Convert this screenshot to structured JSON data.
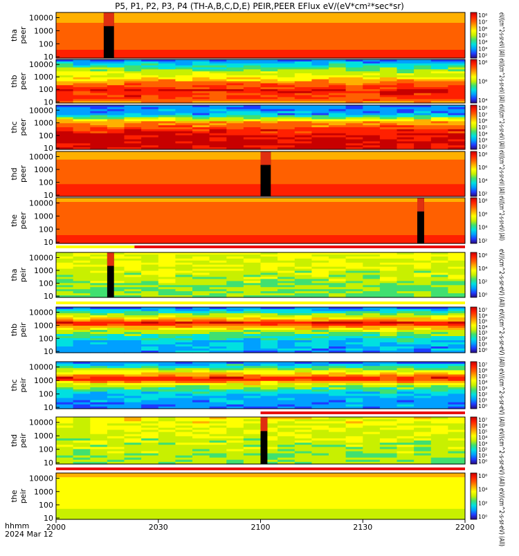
{
  "title": "P5, P1, P2, P3, P4 (TH-A,B,C,D,E) PEIR,PEER EFlux eV/(eV*cm²*sec*sr)",
  "colorbar_label_top": "eV/(cm^2-s-sr-eV) (All) eV/(cm^2-s-sr-eV) (All) eV/(cm^2-s-sr-eV) (All) eV/(cm^2-s-sr-eV) (All) eV/(cm^2-s-sr-eV) (All)",
  "colorbar_label_bottom": "eV/(cm^2-s-sr-eV) (All) eV/(cm^2-s-sr-eV) (All) eV/(cm^2-s-sr-eV) (All) eV/(cm^2-s-sr-eV) (All) eV/(cm^2-s-sr-eV) (All)",
  "x_axis": {
    "label_line1": "hhmm",
    "label_line2": "2024 Mar 12",
    "ticks": [
      "2000",
      "2030",
      "2100",
      "2130",
      "2200"
    ],
    "range": [
      "20:00",
      "22:00"
    ]
  },
  "colors": {
    "spectrogram_palette": [
      "#2a0a7a",
      "#1e3cff",
      "#00a0ff",
      "#00e0e0",
      "#40e070",
      "#c8f000",
      "#ffff00",
      "#ffb000",
      "#ff6000",
      "#ff2000",
      "#c80000"
    ],
    "bar_red": "#e81010",
    "bar_yellow": "#ffff00",
    "no_data": "#000000"
  },
  "chart_data": {
    "type": "heatmap",
    "x_unit": "hhmm",
    "y_scale": "log",
    "panels": [
      {
        "id": "tha-peer",
        "label1": "tha",
        "label2": "peer",
        "y_ticks": [
          "10",
          "100",
          "1000",
          "10000"
        ],
        "cbar_ticks": [
          "10²",
          "10³",
          "10⁴",
          "10⁵",
          "10⁶",
          "10⁷",
          "10⁸"
        ],
        "gap_start": "20:14",
        "gap_end": "20:17"
      },
      {
        "id": "thb-peer",
        "label1": "thb",
        "label2": "peer",
        "y_ticks": [
          "10",
          "100",
          "1000",
          "10000"
        ],
        "cbar_ticks": [
          "10⁴",
          "10⁶",
          "10⁸"
        ]
      },
      {
        "id": "thc-peer",
        "label1": "thc",
        "label2": "peer",
        "y_ticks": [
          "10",
          "100",
          "1000",
          "10000"
        ],
        "cbar_ticks": [
          "10²",
          "10³",
          "10⁴",
          "10⁵",
          "10⁶",
          "10⁷",
          "10⁸"
        ]
      },
      {
        "id": "thd-peer",
        "label1": "thd",
        "label2": "peer",
        "y_ticks": [
          "10",
          "100",
          "1000",
          "10000"
        ],
        "cbar_ticks": [
          "10²",
          "10⁴",
          "10⁶",
          "10⁸"
        ],
        "gap_start": "21:00",
        "gap_end": "21:03"
      },
      {
        "id": "the-peer",
        "label1": "the",
        "label2": "peer",
        "y_ticks": [
          "10",
          "100",
          "1000",
          "10000"
        ],
        "cbar_ticks": [
          "10²",
          "10⁴",
          "10⁶",
          "10⁸"
        ],
        "gap_start": "21:46",
        "gap_end": "21:48"
      },
      {
        "id": "tha-peir",
        "label1": "tha",
        "label2": "peir",
        "y_ticks": [
          "10",
          "100",
          "1000",
          "10000"
        ],
        "cbar_ticks": [
          "10⁰",
          "10²",
          "10⁴",
          "10⁶"
        ],
        "gap_start": "20:15",
        "gap_end": "20:17"
      },
      {
        "id": "thb-peir",
        "label1": "thb",
        "label2": "peir",
        "y_ticks": [
          "10",
          "100",
          "1000",
          "10000"
        ],
        "cbar_ticks": [
          "10⁰",
          "10¹",
          "10²",
          "10³",
          "10⁴",
          "10⁵",
          "10⁶",
          "10⁷"
        ]
      },
      {
        "id": "thc-peir",
        "label1": "thc",
        "label2": "peir",
        "y_ticks": [
          "10",
          "100",
          "1000",
          "10000"
        ],
        "cbar_ticks": [
          "10⁰",
          "10¹",
          "10²",
          "10³",
          "10⁴",
          "10⁵",
          "10⁶",
          "10⁷"
        ]
      },
      {
        "id": "thd-peir",
        "label1": "thd",
        "label2": "peir",
        "y_ticks": [
          "10",
          "100",
          "1000",
          "10000"
        ],
        "cbar_ticks": [
          "10⁰",
          "10¹",
          "10²",
          "10³",
          "10⁴",
          "10⁵",
          "10⁶",
          "10⁷"
        ],
        "gap_start": "21:00",
        "gap_end": "21:02"
      },
      {
        "id": "the-peir",
        "label1": "the",
        "label2": "peir",
        "y_ticks": [
          "10",
          "100",
          "1000",
          "10000"
        ],
        "cbar_ticks": [
          "10⁰",
          "10²",
          "10⁴",
          "10⁶"
        ]
      }
    ]
  }
}
